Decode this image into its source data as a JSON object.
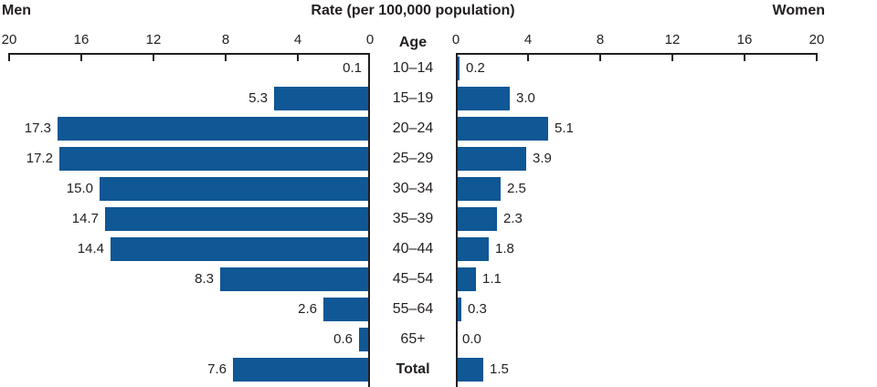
{
  "header": {
    "left": "Men",
    "center": "Rate (per 100,000 population)",
    "right": "Women",
    "age": "Age"
  },
  "colors": {
    "bar": "#0F5795",
    "axis": "#231F20",
    "text": "#231F20"
  },
  "chart_data": {
    "type": "bar",
    "subtype": "population-pyramid",
    "title": "Rate (per 100,000 population)",
    "xlabel": "Rate (per 100,000 population)",
    "ylabel": "Age",
    "categories": [
      "10–14",
      "15–19",
      "20–24",
      "25–29",
      "30–34",
      "35–39",
      "40–44",
      "45–54",
      "55–64",
      "65+",
      "Total"
    ],
    "series": [
      {
        "name": "Men",
        "side": "left",
        "values": [
          0.1,
          5.3,
          17.3,
          17.2,
          15.0,
          14.7,
          14.4,
          8.3,
          2.6,
          0.6,
          7.6
        ]
      },
      {
        "name": "Women",
        "side": "right",
        "values": [
          0.2,
          3.0,
          5.1,
          3.9,
          2.5,
          2.3,
          1.8,
          1.1,
          0.3,
          0.0,
          1.5
        ]
      }
    ],
    "axis": {
      "min": 0,
      "max": 20,
      "ticks": [
        0,
        4,
        8,
        12,
        16,
        20
      ]
    },
    "value_labels": "outside-end, one decimal",
    "grid": false,
    "legend_position": "none (series named in top corners)",
    "bold_categories": [
      "Total"
    ]
  }
}
